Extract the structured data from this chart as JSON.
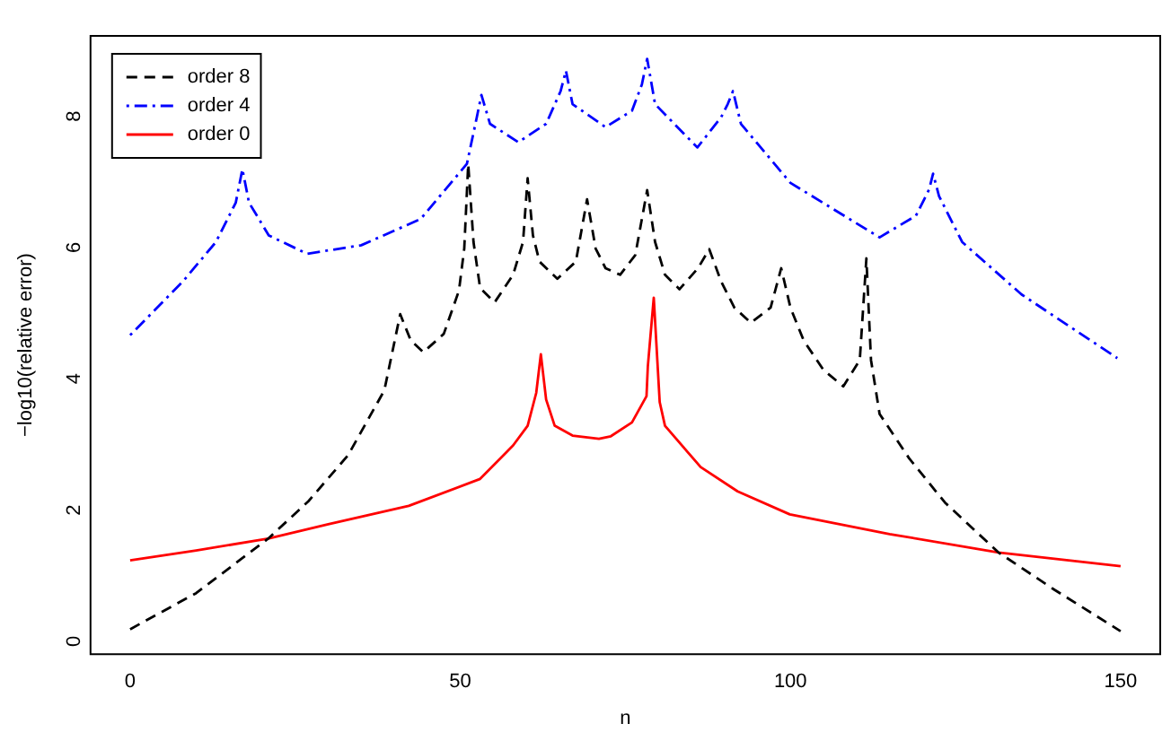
{
  "chart_data": {
    "type": "line",
    "xlabel": "n",
    "ylabel": "−log10(relative error)",
    "xlim": [
      -6,
      156
    ],
    "xticks": [
      0,
      50,
      100,
      150
    ],
    "ylim": [
      -0.28,
      9.14
    ],
    "yticks": [
      0,
      2,
      4,
      6,
      8
    ],
    "grid": false,
    "legend": "top left",
    "marker": "none",
    "series": [
      {
        "name": "order 8",
        "color": "#000000",
        "line_style": "dashed",
        "x": [
          0,
          10,
          20.9,
          27,
          33,
          38.5,
          40.9,
          42.5,
          44.4,
          47.5,
          49.8,
          50.6,
          51.2,
          52,
          53,
          55.2,
          58,
          59.5,
          60.2,
          61,
          62,
          64.7,
          67.5,
          69.2,
          70.5,
          72,
          74.2,
          76.5,
          78.3,
          79.5,
          81,
          83.2,
          86,
          87.7,
          89.5,
          91.5,
          94,
          97,
          98.6,
          100,
          102,
          105,
          108,
          110.5,
          111.5,
          112.2,
          113.5,
          118,
          123.4,
          131.5,
          140,
          150
        ],
        "values": [
          0.1,
          0.65,
          1.48,
          2.05,
          2.75,
          3.74,
          4.9,
          4.5,
          4.32,
          4.6,
          5.26,
          5.9,
          7.19,
          6.0,
          5.3,
          5.08,
          5.5,
          6.0,
          6.97,
          6.1,
          5.7,
          5.44,
          5.7,
          6.65,
          5.9,
          5.6,
          5.5,
          5.8,
          6.79,
          6.0,
          5.5,
          5.28,
          5.6,
          5.89,
          5.4,
          5.0,
          4.77,
          5.0,
          5.6,
          5.0,
          4.5,
          4.05,
          3.8,
          4.2,
          5.75,
          4.2,
          3.38,
          2.7,
          2.03,
          1.27,
          0.7,
          0.07
        ]
      },
      {
        "name": "order 4",
        "color": "#0000ff",
        "line_style": "dotted",
        "x": [
          0,
          8,
          13,
          16,
          17,
          18,
          21,
          26.8,
          35,
          44,
          51,
          52.5,
          53.2,
          54.5,
          58.8,
          63,
          65.2,
          66,
          67,
          72,
          76,
          77.5,
          78.3,
          79.5,
          85.9,
          89.5,
          90.5,
          91.3,
          92.5,
          100,
          113.5,
          119,
          121,
          121.6,
          122.5,
          126,
          135,
          149.5
        ],
        "values": [
          4.58,
          5.4,
          6.0,
          6.6,
          7.11,
          6.6,
          6.1,
          5.82,
          5.95,
          6.35,
          7.19,
          7.9,
          8.24,
          7.8,
          7.52,
          7.8,
          8.3,
          8.61,
          8.1,
          7.75,
          8.0,
          8.4,
          8.79,
          8.1,
          7.44,
          7.9,
          8.1,
          8.3,
          7.8,
          6.9,
          6.07,
          6.4,
          6.8,
          7.04,
          6.7,
          6.0,
          5.2,
          4.23
        ]
      },
      {
        "name": "order 0",
        "color": "#ff0000",
        "line_style": "solid",
        "x": [
          0,
          10,
          20.9,
          30,
          42.2,
          53,
          58,
          60.2,
          61.5,
          62.2,
          63,
          64.3,
          67,
          71,
          72.8,
          76,
          78.2,
          78.4,
          79.3,
          80.2,
          81,
          86.4,
          92,
          99.9,
          115,
          131.5,
          150
        ],
        "values": [
          1.15,
          1.3,
          1.48,
          1.7,
          1.98,
          2.39,
          2.9,
          3.2,
          3.7,
          4.29,
          3.6,
          3.2,
          3.05,
          3.0,
          3.04,
          3.25,
          3.65,
          4.1,
          5.15,
          3.56,
          3.2,
          2.57,
          2.2,
          1.85,
          1.55,
          1.27,
          1.06
        ]
      }
    ]
  }
}
